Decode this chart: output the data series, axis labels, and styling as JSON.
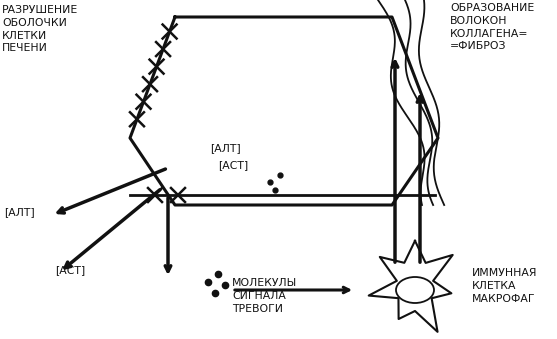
{
  "bg_color": "#ffffff",
  "line_color": "#111111",
  "text_color": "#111111",
  "title_top_left": "РАЗРУШЕНИЕ\nОБОЛОЧКИ\nКЛЕТКИ\nПЕЧЕНИ",
  "title_top_right": "ОБРАЗОВАНИЕ\nВОЛОКОН\nКОЛЛАГЕНА=\n=ФИБРОЗ",
  "label_alt_inside": "[АЛТ]",
  "label_ast_inside": "[АСТ]",
  "label_alt_outside": "[АЛТ]",
  "label_ast_outside": "[АСТ]",
  "label_molecules": "МОЛЕКУЛЫ\nСИГНАЛА\nТРЕВОГИ",
  "label_immune": "ИММУННАЯ\nКЛЕТКА\nМАКРОФАГ",
  "figsize": [
    5.57,
    3.39
  ],
  "dpi": 100
}
